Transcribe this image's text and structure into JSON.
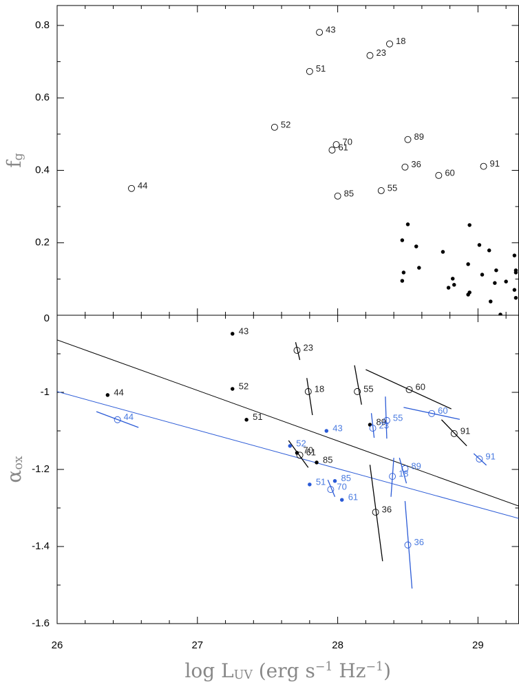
{
  "chart_data": [
    {
      "type": "scatter",
      "y_label": [
        {
          "text": "f"
        },
        {
          "text": "g",
          "style": "sub"
        }
      ],
      "xlim": [
        26,
        29.29
      ],
      "ylim": [
        0,
        0.855
      ],
      "xticks": [
        26,
        27,
        28,
        29
      ],
      "xtick_labels": false,
      "xticks_minor": [
        26.2,
        26.4,
        26.6,
        26.8,
        27.2,
        27.4,
        27.6,
        27.8,
        28.2,
        28.4,
        28.6,
        28.8,
        29.2
      ],
      "yticks": [
        0,
        0.2,
        0.4,
        0.6,
        0.8
      ],
      "yticks_minor": [
        0.1,
        0.3,
        0.5,
        0.7
      ],
      "series": [
        {
          "color": "#000000",
          "marker": "open",
          "x": [
            27.87,
            28.37,
            28.23,
            27.8,
            27.55,
            27.99,
            27.96,
            28.5,
            28.48,
            28.72,
            29.04,
            26.53,
            28.0,
            28.31
          ],
          "values": [
            0.781,
            0.749,
            0.717,
            0.673,
            0.519,
            0.471,
            0.456,
            0.485,
            0.409,
            0.386,
            0.411,
            0.35,
            0.329,
            0.344
          ],
          "labels": [
            "43",
            "18",
            "23",
            "51",
            "52",
            "70",
            "61",
            "89",
            "36",
            "60",
            "91",
            "44",
            "85",
            "55"
          ]
        },
        {
          "color": "#000000",
          "marker": "filled",
          "x": [
            28.5,
            28.94,
            28.46,
            28.56,
            29.01,
            28.75,
            29.08,
            28.47,
            28.46,
            28.58,
            28.93,
            28.82,
            28.83,
            28.79,
            28.94,
            28.93,
            29.03,
            29.13,
            29.12,
            29.09,
            29.2,
            29.26,
            29.27,
            29.27,
            29.26,
            29.27,
            29.16
          ],
          "values": [
            0.251,
            0.249,
            0.207,
            0.19,
            0.194,
            0.175,
            0.179,
            0.118,
            0.095,
            0.131,
            0.141,
            0.101,
            0.084,
            0.076,
            0.063,
            0.057,
            0.112,
            0.124,
            0.089,
            0.038,
            0.093,
            0.165,
            0.124,
            0.118,
            0.07,
            0.048,
            0.002
          ]
        }
      ]
    },
    {
      "type": "scatter",
      "y_label": [
        {
          "text": "α"
        },
        {
          "text": "ox",
          "style": "sub"
        }
      ],
      "x_label": [
        {
          "text": "log L"
        },
        {
          "text": "UV",
          "style": "sub"
        },
        {
          "text": " (erg s"
        },
        {
          "text": "−1",
          "style": "sup"
        },
        {
          "text": " Hz"
        },
        {
          "text": "−1",
          "style": "sup"
        },
        {
          "text": ")"
        }
      ],
      "xlim": [
        26,
        29.29
      ],
      "ylim": [
        -1.6,
        -0.8
      ],
      "xticks": [
        26,
        27,
        28,
        29
      ],
      "xtick_labels": true,
      "xticks_minor": [
        26.2,
        26.4,
        26.6,
        26.8,
        27.2,
        27.4,
        27.6,
        27.8,
        28.2,
        28.4,
        28.6,
        28.8,
        29.2
      ],
      "yticks": [
        -1.6,
        -1.4,
        -1.2,
        -1
      ],
      "yticks_minor": [
        -1.5,
        -1.3,
        -1.1,
        -0.9
      ],
      "lines": [
        {
          "color": "#000000",
          "x": [
            26,
            29.29
          ],
          "values": [
            -0.864,
            -1.295
          ]
        },
        {
          "color": "#2a5ad6",
          "x": [
            26,
            29.29
          ],
          "values": [
            -0.998,
            -1.327
          ]
        }
      ],
      "series": [
        {
          "color": "#000000",
          "marker": "filled",
          "x": [
            27.25,
            27.25,
            26.36,
            27.35,
            27.71,
            27.85,
            28.23
          ],
          "values": [
            -0.848,
            -0.991,
            -1.007,
            -1.071,
            -1.157,
            -1.182,
            -1.084
          ],
          "labels": [
            "43",
            "52",
            "44",
            "51",
            "70",
            "85",
            "89"
          ]
        },
        {
          "color": "#000000",
          "marker": "open",
          "x": [
            27.71,
            27.79,
            28.14,
            28.51,
            28.83,
            28.27,
            27.73
          ],
          "values": [
            -0.891,
            -0.998,
            -0.998,
            -0.993,
            -1.107,
            -1.311,
            -1.163
          ],
          "labels": [
            "23",
            "18",
            "55",
            "60",
            "91",
            "36",
            "61"
          ],
          "err_x": [
            [
              27.7,
              27.73
            ],
            [
              27.78,
              27.82
            ],
            [
              28.12,
              28.17
            ],
            [
              28.2,
              28.81
            ],
            [
              28.74,
              28.92
            ],
            [
              28.23,
              28.32
            ],
            [
              27.65,
              27.79
            ]
          ],
          "err_y": [
            [
              -0.87,
              -0.916
            ],
            [
              -0.963,
              -1.059
            ],
            [
              -0.93,
              -1.032
            ],
            [
              -0.941,
              -1.043
            ],
            [
              -1.071,
              -1.139
            ],
            [
              -1.188,
              -1.438
            ],
            [
              -1.125,
              -1.195
            ]
          ]
        },
        {
          "color": "#2a5ad6",
          "marker": "filled",
          "x": [
            27.66,
            27.92,
            27.8,
            27.98,
            28.03
          ],
          "values": [
            -1.139,
            -1.1,
            -1.239,
            -1.23,
            -1.279
          ],
          "labels": [
            "52",
            "43",
            "51",
            "85",
            "61"
          ]
        },
        {
          "color": "#2a5ad6",
          "marker": "open",
          "x": [
            26.43,
            28.25,
            28.35,
            28.67,
            29.01,
            28.48,
            28.39,
            27.95,
            28.5
          ],
          "values": [
            -1.071,
            -1.093,
            -1.073,
            -1.055,
            -1.173,
            -1.198,
            -1.218,
            -1.252,
            -1.396
          ],
          "labels": [
            "44",
            "23",
            "55",
            "60",
            "91",
            "89",
            "18",
            "70",
            "36"
          ],
          "err_x": [
            [
              26.28,
              26.58
            ],
            [
              28.24,
              28.26
            ],
            [
              28.34,
              28.35
            ],
            [
              28.47,
              28.87
            ],
            [
              28.97,
              29.06
            ],
            [
              28.44,
              28.49
            ],
            [
              28.4,
              28.38
            ],
            [
              27.93,
              27.98
            ],
            [
              28.48,
              28.53
            ]
          ],
          "err_y": [
            [
              -1.05,
              -1.091
            ],
            [
              -1.054,
              -1.118
            ],
            [
              -1.011,
              -1.12
            ],
            [
              -1.039,
              -1.07
            ],
            [
              -1.159,
              -1.189
            ],
            [
              -1.17,
              -1.236
            ],
            [
              -1.17,
              -1.271
            ],
            [
              -1.227,
              -1.271
            ],
            [
              -1.282,
              -1.509
            ]
          ]
        }
      ]
    }
  ]
}
